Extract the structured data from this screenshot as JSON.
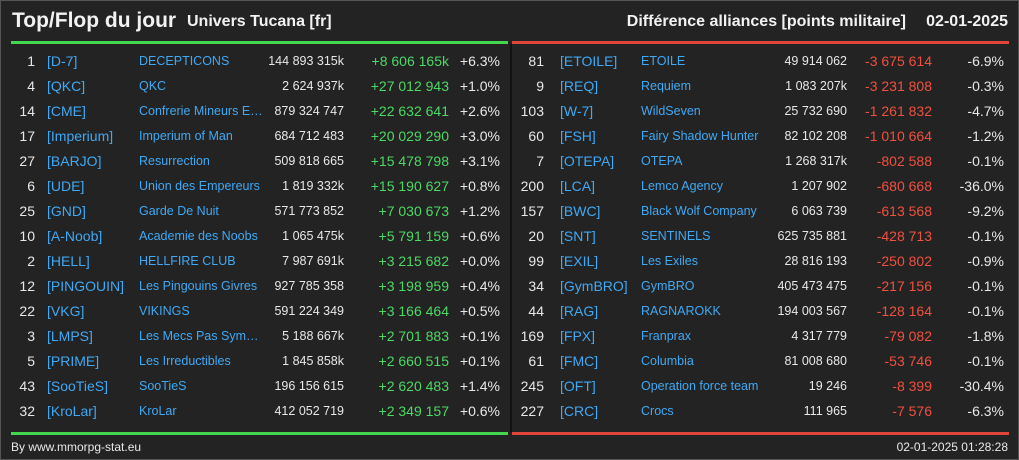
{
  "header": {
    "title": "Top/Flop du jour",
    "universe": "Univers Tucana [fr]",
    "subject": "Différence alliances [points militaire]",
    "date": "02-01-2025"
  },
  "colors": {
    "positive": "#4cd964",
    "negative": "#f0503f",
    "link": "#3fa9f5"
  },
  "top": [
    {
      "rank": "1",
      "tag": "[D-7]",
      "name": "DECEPTICONS",
      "points": "144 893 315k",
      "diff": "+8 606 165k",
      "pct": "+6.3%"
    },
    {
      "rank": "4",
      "tag": "[QKC]",
      "name": "QKC",
      "points": "2 624 937k",
      "diff": "+27 012 943",
      "pct": "+1.0%"
    },
    {
      "rank": "14",
      "tag": "[CME]",
      "name": "Confrerie Mineurs Elite",
      "points": "879 324 747",
      "diff": "+22 632 641",
      "pct": "+2.6%"
    },
    {
      "rank": "17",
      "tag": "[Imperium]",
      "name": "Imperium of Man",
      "points": "684 712 483",
      "diff": "+20 029 290",
      "pct": "+3.0%"
    },
    {
      "rank": "27",
      "tag": "[BARJO]",
      "name": "Resurrection",
      "points": "509 818 665",
      "diff": "+15 478 798",
      "pct": "+3.1%"
    },
    {
      "rank": "6",
      "tag": "[UDE]",
      "name": "Union des Empereurs",
      "points": "1 819 332k",
      "diff": "+15 190 627",
      "pct": "+0.8%"
    },
    {
      "rank": "25",
      "tag": "[GND]",
      "name": "Garde De Nuit",
      "points": "571 773 852",
      "diff": "+7 030 673",
      "pct": "+1.2%"
    },
    {
      "rank": "10",
      "tag": "[A-Noob]",
      "name": "Academie des Noobs",
      "points": "1 065 475k",
      "diff": "+5 791 159",
      "pct": "+0.6%"
    },
    {
      "rank": "2",
      "tag": "[HELL]",
      "name": "HELLFIRE CLUB",
      "points": "7 987 691k",
      "diff": "+3 215 682",
      "pct": "+0.0%"
    },
    {
      "rank": "12",
      "tag": "[PINGOUIN]",
      "name": "Les Pingouins Givres",
      "points": "927 785 358",
      "diff": "+3 198 959",
      "pct": "+0.4%"
    },
    {
      "rank": "22",
      "tag": "[VKG]",
      "name": "VIKINGS",
      "points": "591 224 349",
      "diff": "+3 166 464",
      "pct": "+0.5%"
    },
    {
      "rank": "3",
      "tag": "[LMPS]",
      "name": "Les Mecs Pas Sympas",
      "points": "5 188 667k",
      "diff": "+2 701 883",
      "pct": "+0.1%"
    },
    {
      "rank": "5",
      "tag": "[PRIME]",
      "name": "Les Irreductibles",
      "points": "1 845 858k",
      "diff": "+2 660 515",
      "pct": "+0.1%"
    },
    {
      "rank": "43",
      "tag": "[SooTieS]",
      "name": "SooTieS",
      "points": "196 156 615",
      "diff": "+2 620 483",
      "pct": "+1.4%"
    },
    {
      "rank": "32",
      "tag": "[KroLar]",
      "name": "KroLar",
      "points": "412 052 719",
      "diff": "+2 349 157",
      "pct": "+0.6%"
    }
  ],
  "flop": [
    {
      "rank": "81",
      "tag": "[ETOILE]",
      "name": "ETOILE",
      "points": "49 914 062",
      "diff": "-3 675 614",
      "pct": "-6.9%"
    },
    {
      "rank": "9",
      "tag": "[REQ]",
      "name": "Requiem",
      "points": "1 083 207k",
      "diff": "-3 231 808",
      "pct": "-0.3%"
    },
    {
      "rank": "103",
      "tag": "[W-7]",
      "name": "WildSeven",
      "points": "25 732 690",
      "diff": "-1 261 832",
      "pct": "-4.7%"
    },
    {
      "rank": "60",
      "tag": "[FSH]",
      "name": "Fairy Shadow Hunter",
      "points": "82 102 208",
      "diff": "-1 010 664",
      "pct": "-1.2%"
    },
    {
      "rank": "7",
      "tag": "[OTEPA]",
      "name": "OTEPA",
      "points": "1 268 317k",
      "diff": "-802 588",
      "pct": "-0.1%"
    },
    {
      "rank": "200",
      "tag": "[LCA]",
      "name": "Lemco Agency",
      "points": "1 207 902",
      "diff": "-680 668",
      "pct": "-36.0%"
    },
    {
      "rank": "157",
      "tag": "[BWC]",
      "name": "Black Wolf Company",
      "points": "6 063 739",
      "diff": "-613 568",
      "pct": "-9.2%"
    },
    {
      "rank": "20",
      "tag": "[SNT]",
      "name": "SENTINELS",
      "points": "625 735 881",
      "diff": "-428 713",
      "pct": "-0.1%"
    },
    {
      "rank": "99",
      "tag": "[EXIL]",
      "name": "Les Exiles",
      "points": "28 816 193",
      "diff": "-250 802",
      "pct": "-0.9%"
    },
    {
      "rank": "34",
      "tag": "[GymBRO]",
      "name": "GymBRO",
      "points": "405 473 475",
      "diff": "-217 156",
      "pct": "-0.1%"
    },
    {
      "rank": "44",
      "tag": "[RAG]",
      "name": "RAGNAROKK",
      "points": "194 003 567",
      "diff": "-128 164",
      "pct": "-0.1%"
    },
    {
      "rank": "169",
      "tag": "[FPX]",
      "name": "Franprax",
      "points": "4 317 779",
      "diff": "-79 082",
      "pct": "-1.8%"
    },
    {
      "rank": "61",
      "tag": "[FMC]",
      "name": "Columbia",
      "points": "81 008 680",
      "diff": "-53 746",
      "pct": "-0.1%"
    },
    {
      "rank": "245",
      "tag": "[OFT]",
      "name": "Operation force team",
      "points": "19 246",
      "diff": "-8 399",
      "pct": "-30.4%"
    },
    {
      "rank": "227",
      "tag": "[CRC]",
      "name": "Crocs",
      "points": "111 965",
      "diff": "-7 576",
      "pct": "-6.3%"
    }
  ],
  "footer": {
    "source": "By www.mmorpg-stat.eu",
    "timestamp": "02-01-2025 01:28:28"
  }
}
